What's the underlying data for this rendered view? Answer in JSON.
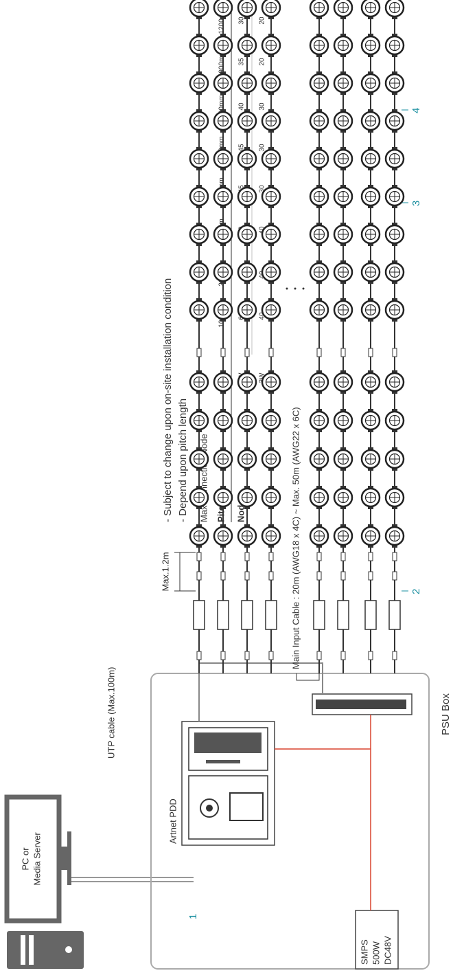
{
  "pc": {
    "line1": "PC or",
    "line2": "Media Server"
  },
  "utp_cable": "UTP cable (Max.100m)",
  "artnet_pdd": "Artnet PDD",
  "smps": {
    "line1": "SMPS",
    "line2": "500W",
    "line3": "DC48V"
  },
  "psu_box": "PSU Box",
  "main_input_cable": "Main Input Cable : 20m (AWG18 x 4C) ~ Max. 50m (AWG22 x 6C)",
  "max_length": "Max.1.2m",
  "callouts": [
    "1",
    "2",
    "3",
    "4"
  ],
  "notes": [
    "- Subject to change upon on-site installation condition",
    "- Depend upon pitch length"
  ],
  "table": {
    "title": "Max Connection Node",
    "pitch_label": "Pitch",
    "node_label": "Node",
    "pitches": [
      "100mm",
      "200mm",
      "300mm",
      "500mm",
      "600mm",
      "700mm",
      "900mm",
      "1200mm"
    ],
    "rows": [
      {
        "wire": "2W",
        "values": [
          60,
          60,
          50,
          45,
          45,
          40,
          35,
          30
        ]
      },
      {
        "wire": "3W",
        "values": [
          40,
          40,
          40,
          30,
          30,
          30,
          20,
          20
        ]
      }
    ]
  }
}
